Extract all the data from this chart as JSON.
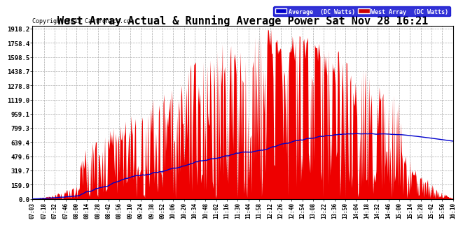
{
  "title": "West Array Actual & Running Average Power Sat Nov 28 16:21",
  "copyright": "Copyright 2015 Cartronics.com",
  "legend_labels": [
    "Average  (DC Watts)",
    "West Array  (DC Watts)"
  ],
  "ymin": 0.0,
  "ymax": 1918.2,
  "yticks": [
    0.0,
    159.9,
    319.7,
    479.6,
    639.4,
    799.3,
    959.1,
    1119.0,
    1278.8,
    1438.7,
    1598.5,
    1758.4,
    1918.2
  ],
  "background_color": "#ffffff",
  "plot_bg_color": "#ffffff",
  "grid_color": "#aaaaaa",
  "area_color": "#ee0000",
  "line_color": "#0000cc",
  "title_fontsize": 11,
  "xtick_labels": [
    "07:03",
    "07:18",
    "07:32",
    "07:46",
    "08:00",
    "08:14",
    "08:28",
    "08:42",
    "08:56",
    "09:10",
    "09:24",
    "09:38",
    "09:52",
    "10:06",
    "10:20",
    "10:34",
    "10:48",
    "11:02",
    "11:16",
    "11:30",
    "11:44",
    "11:58",
    "12:12",
    "12:26",
    "12:40",
    "12:54",
    "13:08",
    "13:22",
    "13:36",
    "13:50",
    "14:04",
    "14:18",
    "14:32",
    "14:46",
    "15:00",
    "15:14",
    "15:28",
    "15:42",
    "15:56",
    "16:10"
  ]
}
